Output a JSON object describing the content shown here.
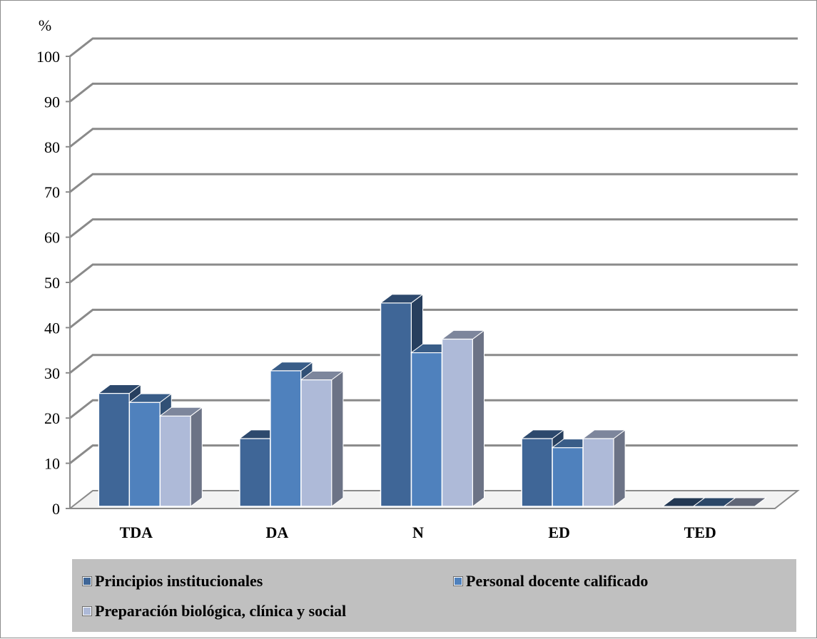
{
  "chart_data": {
    "type": "bar",
    "three_d": true,
    "y_unit_label": "%",
    "categories": [
      "TDA",
      "DA",
      "N",
      "ED",
      "TED"
    ],
    "ylim": [
      0,
      100
    ],
    "yticks": [
      0,
      10,
      20,
      30,
      40,
      50,
      60,
      70,
      80,
      90,
      100
    ],
    "grid": true,
    "legend_position": "bottom",
    "series": [
      {
        "name": "Principios institucionales",
        "color": "#3f6697",
        "values": [
          25,
          15,
          45,
          15,
          0
        ]
      },
      {
        "name": "Personal docente calificado",
        "color": "#4f81bd",
        "values": [
          23,
          30,
          34,
          13,
          0
        ]
      },
      {
        "name": "Preparación biológica, clínica y social",
        "color": "#aebad8",
        "values": [
          20,
          28,
          37,
          15,
          0
        ]
      }
    ]
  }
}
